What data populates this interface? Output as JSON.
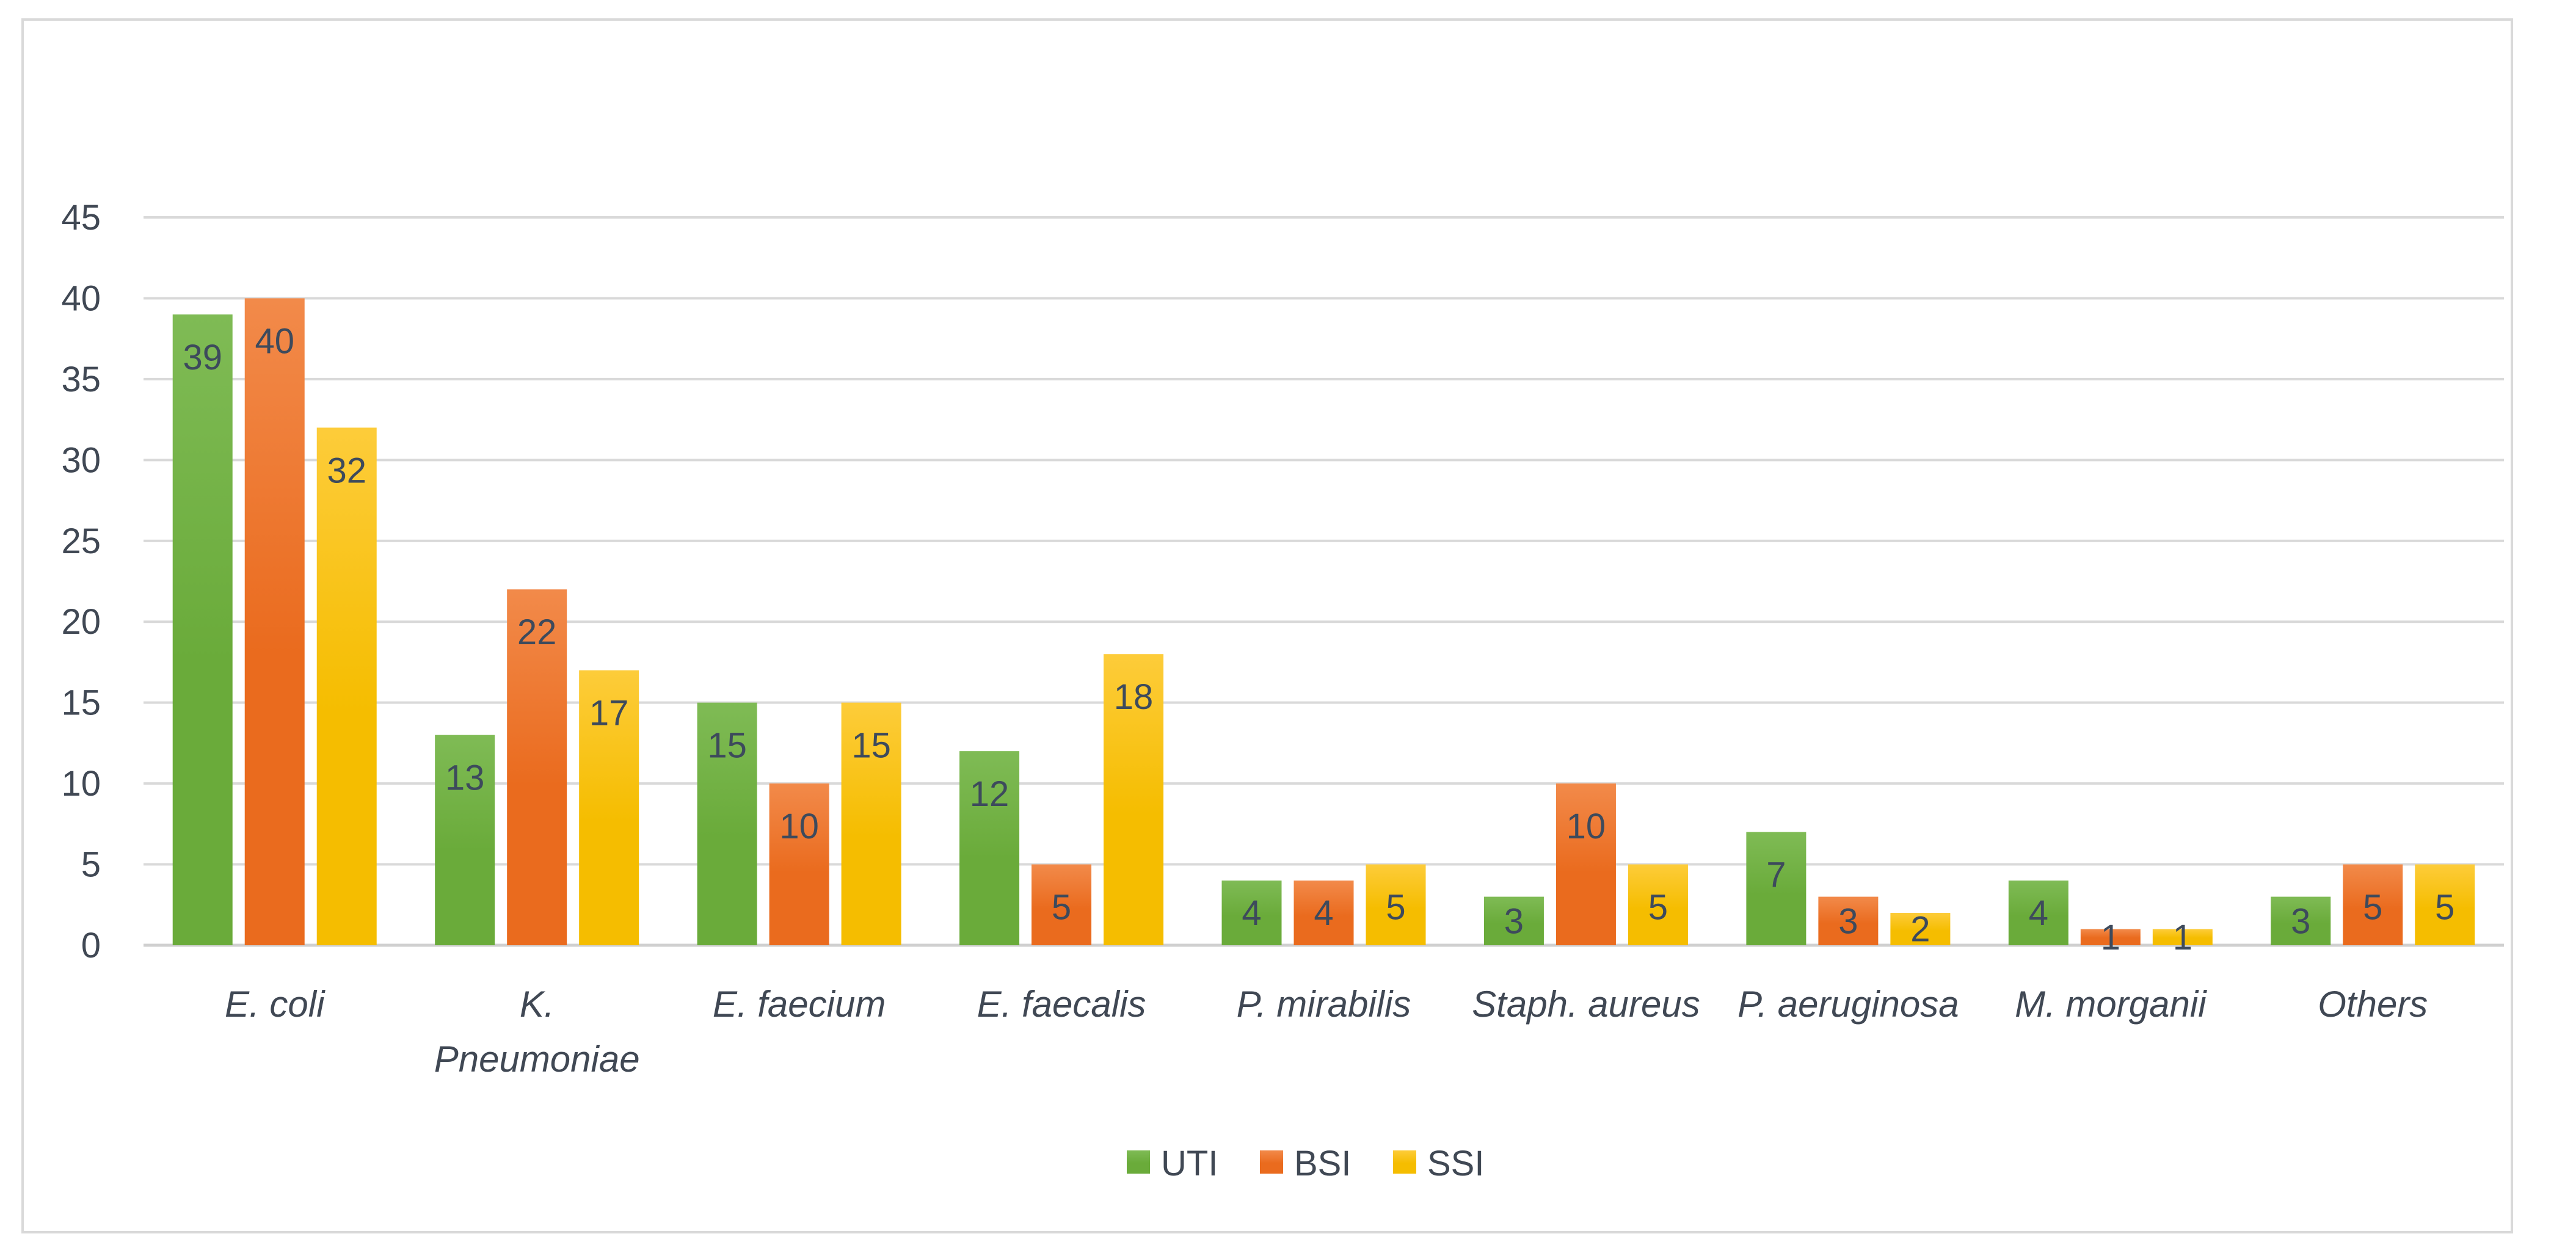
{
  "chart_data": {
    "type": "bar",
    "categories": [
      "E. coli",
      "K. Pneumoniae",
      "E. faecium",
      "E. faecalis",
      "P. mirabilis",
      "Staph. aureus",
      "P. aeruginosa",
      "M. morganii",
      "Others"
    ],
    "category_lines": [
      [
        "E. coli"
      ],
      [
        "K.",
        "Pneumoniae"
      ],
      [
        "E. faecium"
      ],
      [
        "E. faecalis"
      ],
      [
        "P. mirabilis"
      ],
      [
        "Staph. aureus"
      ],
      [
        "P. aeruginosa"
      ],
      [
        "M. morganii"
      ],
      [
        "Others"
      ]
    ],
    "series": [
      {
        "name": "UTI",
        "values": [
          39,
          13,
          15,
          12,
          4,
          3,
          7,
          4,
          3
        ],
        "color": "#6aab3a",
        "color_light": "#7fbb55"
      },
      {
        "name": "BSI",
        "values": [
          40,
          22,
          10,
          5,
          4,
          10,
          3,
          1,
          5
        ],
        "color": "#ea6b1e",
        "color_light": "#f28a4a"
      },
      {
        "name": "SSI",
        "values": [
          32,
          17,
          15,
          18,
          5,
          5,
          2,
          1,
          5
        ],
        "color": "#f5bd00",
        "color_light": "#fdcc3a"
      }
    ],
    "yticks": [
      0,
      5,
      10,
      15,
      20,
      25,
      30,
      35,
      40,
      45
    ],
    "ylim": [
      0,
      45
    ],
    "title": "",
    "xlabel": "",
    "ylabel": "",
    "grid": true,
    "legend_position": "bottom",
    "data_labels": true
  }
}
